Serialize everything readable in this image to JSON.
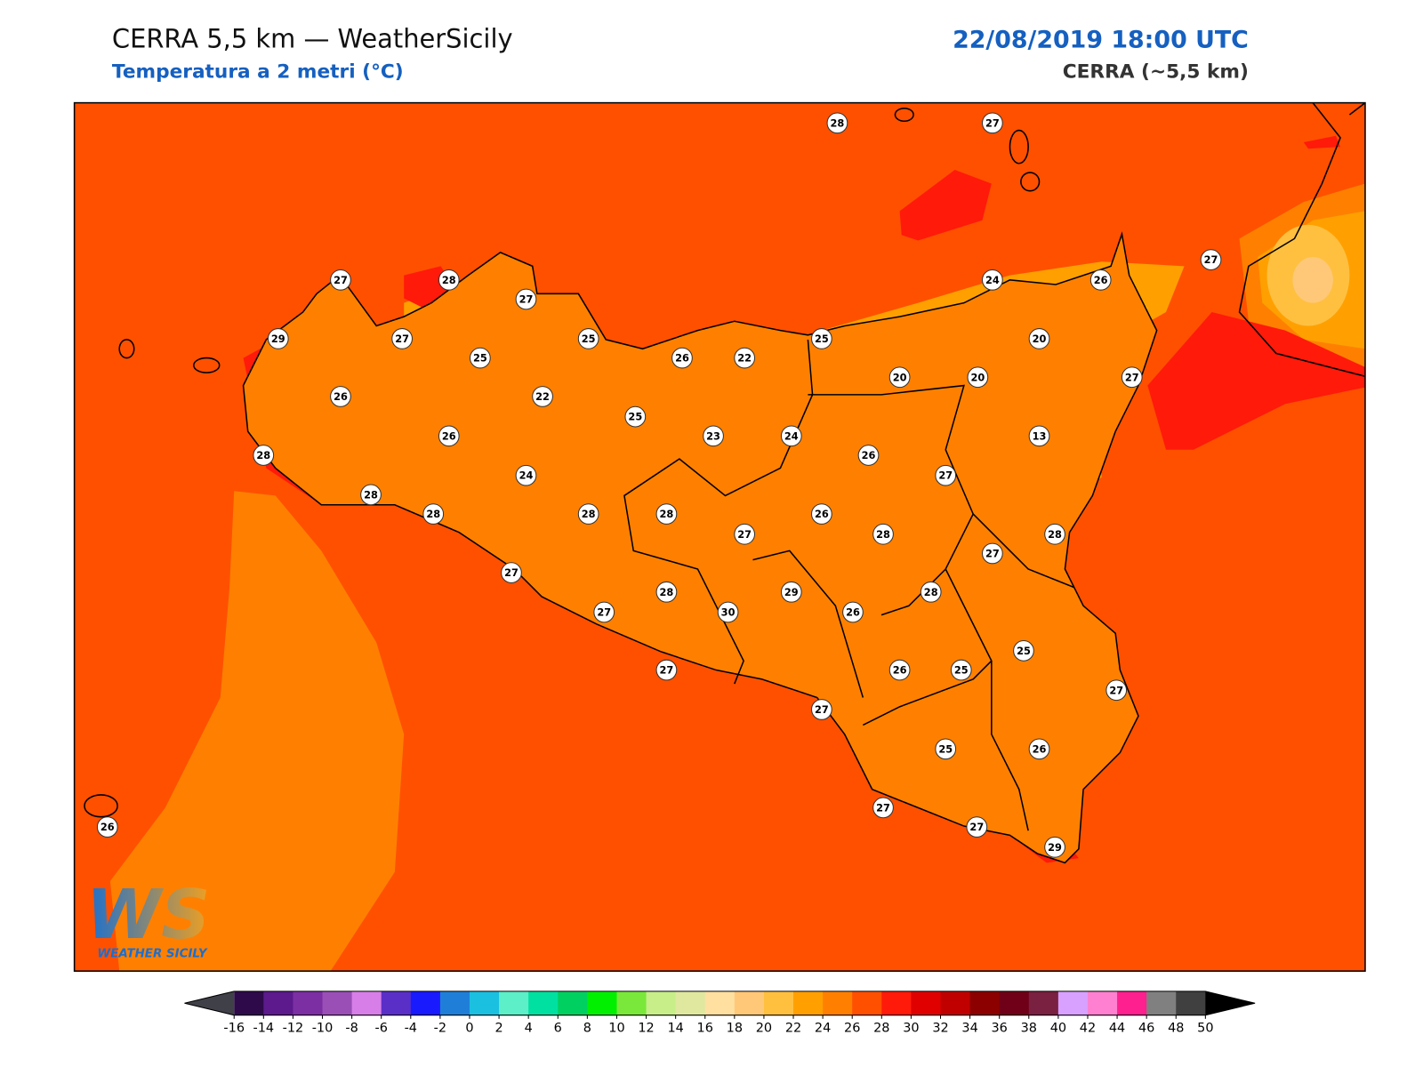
{
  "header": {
    "title": "CERRA 5,5 km — WeatherSicily",
    "subtitle": "Temperatura a 2 metri (°C)",
    "datetime": "22/08/2019 18:00 UTC",
    "model": "CERRA (~5,5 km)"
  },
  "stations": [
    28,
    27,
    27,
    28,
    27,
    24,
    26,
    27,
    29,
    27,
    25,
    25,
    26,
    22,
    25,
    20,
    20,
    20,
    27,
    26,
    22,
    25,
    26,
    23,
    24,
    13,
    26,
    28,
    24,
    27,
    28,
    28,
    28,
    28,
    26,
    27,
    28,
    28,
    27,
    27,
    28,
    29,
    28,
    30,
    27,
    26,
    25,
    26,
    25,
    27,
    27,
    27,
    25,
    26,
    27,
    27,
    29,
    26
  ],
  "colorbar": {
    "ticks": [
      -16,
      -14,
      -12,
      -10,
      -8,
      -6,
      -4,
      -2,
      0,
      2,
      4,
      6,
      8,
      10,
      12,
      14,
      16,
      18,
      20,
      22,
      24,
      26,
      28,
      30,
      32,
      34,
      36,
      38,
      40,
      42,
      44,
      46,
      48,
      50
    ],
    "colors": [
      "#2e0a4a",
      "#5c1a8c",
      "#7b2fa3",
      "#9a4fb7",
      "#d77ee8",
      "#5a2fc8",
      "#1a1aff",
      "#1f7fd8",
      "#1bc0e0",
      "#5cefc8",
      "#00e0a0",
      "#00d060",
      "#00f000",
      "#7ae83a",
      "#c8ee8a",
      "#e0e8a0",
      "#ffe0a0",
      "#ffc878",
      "#ffc040",
      "#ffa000",
      "#ff8000",
      "#ff5000",
      "#ff1a0a",
      "#e00000",
      "#c00000",
      "#8c0000",
      "#700018",
      "#7a2040",
      "#d8a0ff",
      "#ff80d0",
      "#ff2090",
      "#808080",
      "#404040"
    ],
    "under_color": "#404048",
    "over_color": "#000000"
  },
  "logo": {
    "mark": "WS",
    "name": "WEATHER SICILY"
  }
}
